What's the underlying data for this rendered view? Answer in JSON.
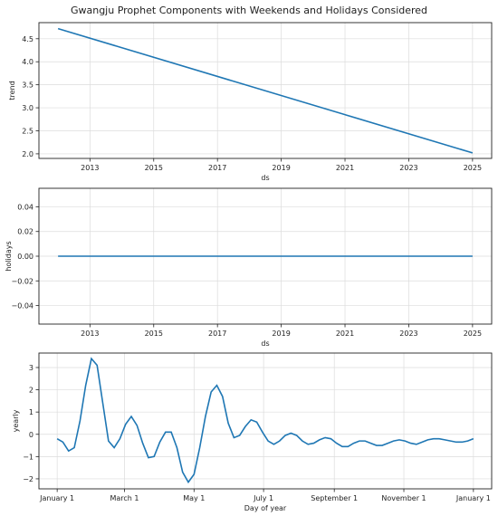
{
  "title": "Gwangju Prophet Components with Weekends and Holidays Considered",
  "colors": {
    "series": "#1f77b4",
    "grid": "#dcdcdc",
    "axis": "#222222"
  },
  "chart_data": [
    {
      "id": "trend",
      "type": "line",
      "xlabel": "ds",
      "ylabel": "trend",
      "xlim": [
        2011.4,
        2025.6
      ],
      "ylim": [
        1.9,
        4.85
      ],
      "xticks": [
        2013,
        2015,
        2017,
        2019,
        2021,
        2023,
        2025
      ],
      "xtick_labels": [
        "2013",
        "2015",
        "2017",
        "2019",
        "2021",
        "2023",
        "2025"
      ],
      "yticks": [
        2.0,
        2.5,
        3.0,
        3.5,
        4.0,
        4.5
      ],
      "ytick_labels": [
        "2.0",
        "2.5",
        "3.0",
        "3.5",
        "4.0",
        "4.5"
      ],
      "grid": true,
      "series": [
        {
          "x": [
            2012.0,
            2025.0
          ],
          "y": [
            4.72,
            2.02
          ]
        }
      ]
    },
    {
      "id": "holidays",
      "type": "line",
      "xlabel": "ds",
      "ylabel": "holidays",
      "xlim": [
        2011.4,
        2025.6
      ],
      "ylim": [
        -0.055,
        0.055
      ],
      "xticks": [
        2013,
        2015,
        2017,
        2019,
        2021,
        2023,
        2025
      ],
      "xtick_labels": [
        "2013",
        "2015",
        "2017",
        "2019",
        "2021",
        "2023",
        "2025"
      ],
      "yticks": [
        -0.04,
        -0.02,
        0.0,
        0.02,
        0.04
      ],
      "ytick_labels": [
        "−0.04",
        "−0.02",
        "0.00",
        "0.02",
        "0.04"
      ],
      "grid": true,
      "series": [
        {
          "x": [
            2012.0,
            2025.0
          ],
          "y": [
            0.0,
            0.0
          ]
        }
      ]
    },
    {
      "id": "yearly",
      "type": "line",
      "xlabel": "Day of year",
      "ylabel": "yearly",
      "xlim": [
        -16,
        381
      ],
      "ylim": [
        -2.45,
        3.65
      ],
      "xticks": [
        0,
        59,
        120,
        181,
        243,
        304,
        365
      ],
      "xtick_labels": [
        "January 1",
        "March 1",
        "May 1",
        "July 1",
        "September 1",
        "November 1",
        "January 1"
      ],
      "yticks": [
        -2,
        -1,
        0,
        1,
        2,
        3
      ],
      "ytick_labels": [
        "−2",
        "−1",
        "0",
        "1",
        "2",
        "3"
      ],
      "grid": true,
      "series": [
        {
          "x": [
            0,
            5,
            10,
            15,
            20,
            25,
            30,
            35,
            40,
            45,
            50,
            55,
            60,
            65,
            70,
            75,
            80,
            85,
            90,
            95,
            100,
            105,
            110,
            115,
            120,
            125,
            130,
            135,
            140,
            145,
            150,
            155,
            160,
            165,
            170,
            175,
            180,
            185,
            190,
            195,
            200,
            205,
            210,
            215,
            220,
            225,
            230,
            235,
            240,
            245,
            250,
            255,
            260,
            265,
            270,
            275,
            280,
            285,
            290,
            295,
            300,
            305,
            310,
            315,
            320,
            325,
            330,
            335,
            340,
            345,
            350,
            355,
            360,
            365
          ],
          "y": [
            -0.2,
            -0.35,
            -0.75,
            -0.6,
            0.6,
            2.2,
            3.4,
            3.1,
            1.4,
            -0.3,
            -0.6,
            -0.2,
            0.45,
            0.8,
            0.4,
            -0.4,
            -1.05,
            -1.0,
            -0.35,
            0.1,
            0.1,
            -0.6,
            -1.7,
            -2.15,
            -1.8,
            -0.6,
            0.8,
            1.9,
            2.2,
            1.7,
            0.5,
            -0.15,
            -0.05,
            0.35,
            0.65,
            0.55,
            0.1,
            -0.3,
            -0.45,
            -0.3,
            -0.05,
            0.05,
            -0.05,
            -0.3,
            -0.45,
            -0.4,
            -0.25,
            -0.15,
            -0.2,
            -0.4,
            -0.55,
            -0.55,
            -0.4,
            -0.3,
            -0.3,
            -0.4,
            -0.5,
            -0.5,
            -0.4,
            -0.3,
            -0.25,
            -0.3,
            -0.4,
            -0.45,
            -0.35,
            -0.25,
            -0.2,
            -0.2,
            -0.25,
            -0.3,
            -0.35,
            -0.35,
            -0.3,
            -0.2
          ]
        }
      ]
    }
  ]
}
